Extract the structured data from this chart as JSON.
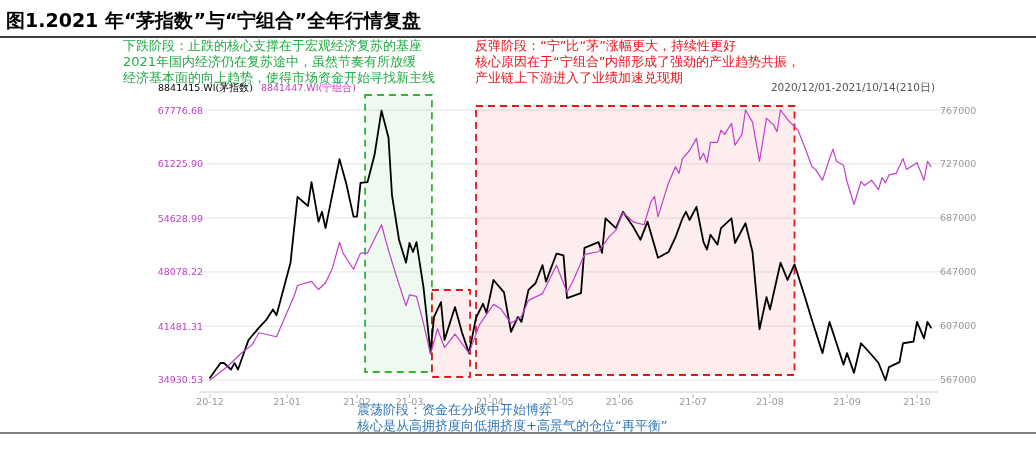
{
  "chart_data": {
    "type": "line",
    "title": "图1.2021 年“茅指数”与“宁组合”全年行情复盘",
    "annotations": [
      "下跌阶段：止跌的核心支撑在于宏观经济复苏的基座",
      "2021年国内经济仍在复苏途中，虽然节奏有所放缓",
      "经济基本面的向上趋势，使得市场资金开始寻找新主线",
      "反弹阶段：“宁”比“茅”涨幅更大，持续性更好",
      "核心原因在于“宁组合”内部形成了强劲的产业趋势共振，",
      "产业链上下游进入了业绩加速兑现期",
      "2020/12/01-2021/10/14(210日)",
      "震荡阶段：资金在分歧中开始博弈",
      "核心是从高拥挤度向低拥挤度+高景气的仓位“再平衡”"
    ],
    "categories": [
      "20-12",
      null,
      null,
      null,
      null,
      null,
      null,
      null,
      null,
      null,
      null,
      null,
      null,
      null,
      null,
      null,
      null,
      null,
      null,
      null,
      null,
      null,
      "21-01",
      null,
      null,
      null,
      null,
      null,
      null,
      null,
      null,
      null,
      null,
      null,
      null,
      null,
      null,
      null,
      null,
      null,
      null,
      null,
      "21-02",
      null,
      null,
      null,
      null,
      null,
      null,
      null,
      null,
      null,
      null,
      null,
      null,
      null,
      null,
      "21-03",
      null,
      null,
      null,
      null,
      null,
      null,
      null,
      null,
      null,
      null,
      null,
      null,
      null,
      null,
      null,
      null,
      null,
      null,
      null,
      null,
      null,
      null,
      "21-04",
      null,
      null,
      null,
      null,
      null,
      null,
      null,
      null,
      null,
      null,
      null,
      null,
      null,
      null,
      null,
      null,
      null,
      null,
      null,
      "21-05",
      null,
      null,
      null,
      null,
      null,
      null,
      null,
      null,
      null,
      null,
      null,
      null,
      null,
      null,
      null,
      null,
      "21-06",
      null,
      null,
      null,
      null,
      null,
      null,
      null,
      null,
      null,
      null,
      null,
      null,
      null,
      null,
      null,
      null,
      null,
      null,
      null,
      null,
      "21-07",
      null,
      null,
      null,
      null,
      null,
      null,
      null,
      null,
      null,
      null,
      null,
      null,
      null,
      null,
      null,
      null,
      null,
      null,
      null,
      null,
      null,
      "21-08",
      null,
      null,
      null,
      null,
      null,
      null,
      null,
      null,
      null,
      null,
      null,
      null,
      null,
      null,
      null,
      null,
      null,
      null,
      null,
      null,
      null,
      "21-09",
      null,
      null,
      null,
      null,
      null,
      null,
      null,
      null,
      null,
      null,
      null,
      null,
      null,
      null,
      null,
      null,
      null,
      null,
      null,
      "21-10",
      null,
      null,
      null,
      null
    ],
    "ylim": [
      33470,
      67776.68
    ],
    "yticks": [
      34930.53,
      41481.31,
      48078.22,
      54628.99,
      {
        "value": 61225.9,
        "label": "61225.90"
      },
      67776.68
    ],
    "y2lim": [
      558100,
      767000
    ],
    "y2ticks": [
      567000,
      607000,
      647000,
      687000,
      727000,
      767000
    ],
    "grid": "y",
    "legend": "top left",
    "series": [
      {
        "name": "8841415.WI(茅指数)",
        "color": "#000000",
        "values": [
          35200,
          null,
          null,
          37000,
          37000,
          null,
          36200,
          37000,
          36200,
          null,
          null,
          39800,
          null,
          null,
          41300,
          null,
          42200,
          null,
          43500,
          42800,
          null,
          null,
          null,
          49200,
          null,
          57200,
          null,
          null,
          56100,
          59000,
          null,
          54200,
          55400,
          53400,
          null,
          null,
          null,
          61800,
          null,
          58700,
          null,
          54800,
          54800,
          58900,
          null,
          59000,
          null,
          62300,
          null,
          67700,
          null,
          64400,
          57400,
          null,
          52000,
          null,
          49200,
          51600,
          50500,
          51700,
          null,
          46200,
          null,
          38300,
          42600,
          null,
          44400,
          39800,
          null,
          null,
          43800,
          null,
          40700,
          null,
          38200,
          null,
          42500,
          null,
          44200,
          43100,
          null,
          47100,
          null,
          null,
          45600,
          null,
          40800,
          null,
          42600,
          42000,
          null,
          45900,
          null,
          46700,
          null,
          48900,
          46900,
          null,
          null,
          50300,
          null,
          50100,
          44900,
          null,
          null,
          null,
          45500,
          51000,
          null,
          null,
          null,
          51700,
          50400,
          54600,
          null,
          null,
          53400,
          null,
          55400,
          null,
          null,
          53500,
          null,
          52000,
          null,
          54200,
          null,
          null,
          49800,
          null,
          null,
          50500,
          null,
          52300,
          null,
          54600,
          55400,
          54400,
          null,
          56000,
          null,
          51700,
          50800,
          52600,
          null,
          51400,
          53400,
          null,
          null,
          54600,
          51600,
          null,
          null,
          54000,
          null,
          50500,
          null,
          41100,
          null,
          45000,
          43500,
          null,
          null,
          49200,
          null,
          47100,
          null,
          49000,
          null,
          null,
          45000,
          null,
          42200,
          null,
          null,
          38200,
          null,
          42000,
          null,
          39400,
          null,
          36800,
          38200,
          null,
          35800,
          null,
          39400,
          null,
          null,
          38000,
          null,
          37000,
          null,
          34900,
          36500,
          null,
          null,
          37100,
          39400,
          null,
          null,
          39600,
          42000,
          null,
          40000,
          42000,
          41300
        ]
      },
      {
        "name": "8841447.WI(宁组合)",
        "color": "#c040c8",
        "axis": "y2",
        "values": [
          567000,
          null,
          null,
          null,
          null,
          577000,
          null,
          null,
          null,
          587000,
          null,
          null,
          593000,
          null,
          602000,
          null,
          null,
          null,
          null,
          599000,
          null,
          null,
          null,
          null,
          629000,
          637000,
          null,
          null,
          null,
          640000,
          null,
          634000,
          null,
          639000,
          null,
          650000,
          null,
          669000,
          661000,
          null,
          null,
          649000,
          null,
          661000,
          null,
          661000,
          null,
          null,
          null,
          682000,
          null,
          663000,
          null,
          646000,
          null,
          null,
          622000,
          630000,
          null,
          629000,
          null,
          609000,
          null,
          586000,
          null,
          605000,
          null,
          591000,
          null,
          null,
          601000,
          null,
          594000,
          null,
          587000,
          null,
          null,
          608000,
          null,
          null,
          null,
          623000,
          null,
          620000,
          null,
          null,
          609000,
          null,
          null,
          614000,
          null,
          626000,
          null,
          null,
          null,
          631000,
          null,
          null,
          null,
          652000,
          null,
          null,
          632000,
          null,
          642000,
          null,
          null,
          660000,
          null,
          null,
          null,
          662000,
          null,
          null,
          673000,
          null,
          678000,
          null,
          691000,
          null,
          null,
          684000,
          null,
          null,
          682000,
          null,
          699000,
          703000,
          688000,
          null,
          null,
          713000,
          null,
          725000,
          720000,
          731000,
          null,
          737000,
          null,
          746000,
          730000,
          735000,
          728000,
          743000,
          null,
          743000,
          752000,
          749000,
          null,
          757000,
          741000,
          null,
          749000,
          767000,
          null,
          758000,
          null,
          729000,
          null,
          761000,
          null,
          756000,
          751000,
          767000,
          null,
          760000,
          null,
          null,
          752000,
          null,
          739000,
          null,
          725000,
          723000,
          null,
          715000,
          null,
          731000,
          738000,
          729000,
          null,
          726000,
          714000,
          null,
          697000,
          null,
          714000,
          711000,
          null,
          715000,
          null,
          708000,
          717000,
          713000,
          719000,
          null,
          720000,
          null,
          731000,
          723000,
          null,
          null,
          728000,
          null,
          715000,
          729000,
          725000
        ]
      }
    ]
  }
}
